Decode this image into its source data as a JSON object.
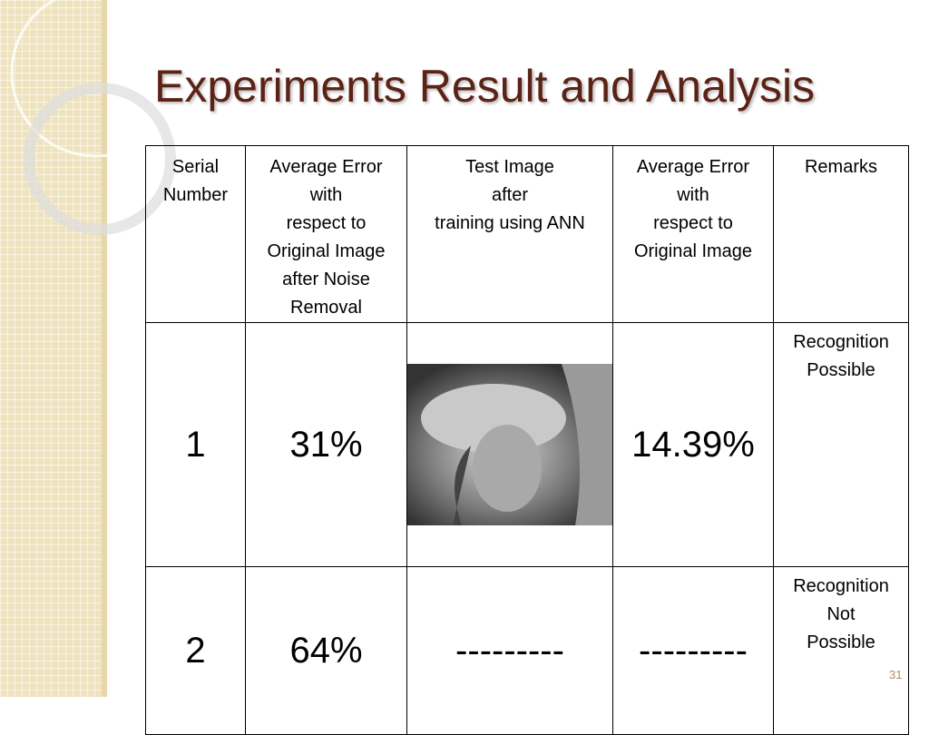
{
  "header": {
    "title": "Experiments Result and Analysis"
  },
  "table": {
    "columns": [
      "Serial\nNumber",
      "Average Error\nwith\n respect to\nOriginal Image\nafter Noise\nRemoval",
      "Test Image\nafter\ntraining using ANN",
      "Average Error\nwith\n respect to\nOriginal Image",
      "Remarks"
    ],
    "rows": [
      [
        "1",
        "31%",
        null,
        "14.39%",
        "Recognition\nPossible"
      ],
      [
        "2",
        "64%",
        "---------",
        "---------",
        "Recognition\nNot\nPossible"
      ]
    ]
  },
  "footer": {
    "page_number": "31"
  }
}
